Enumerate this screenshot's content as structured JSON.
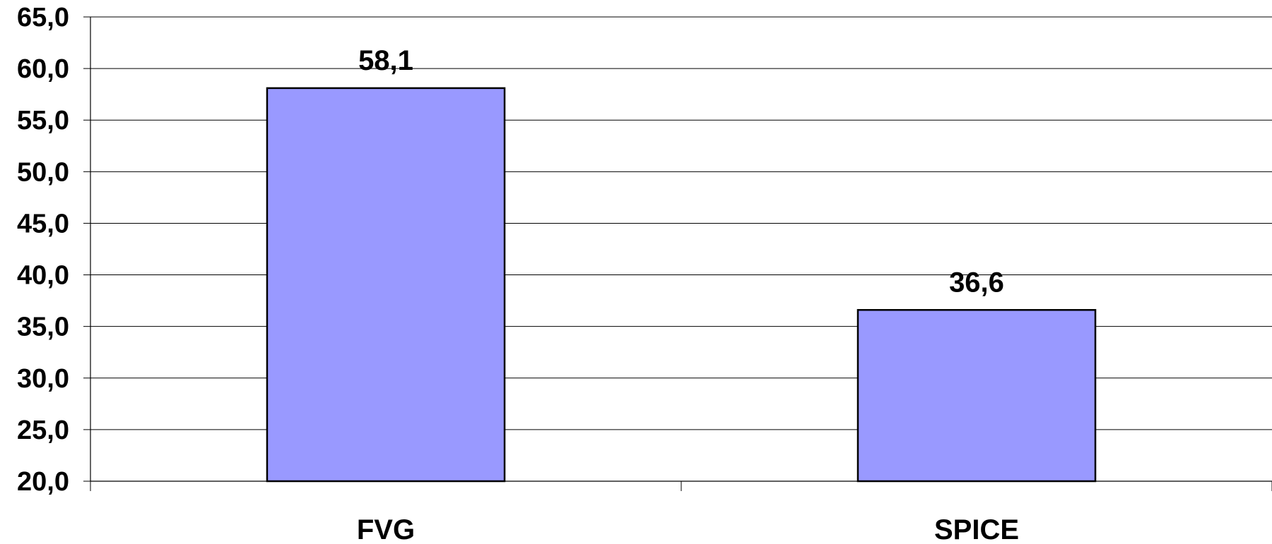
{
  "chart_data": {
    "type": "bar",
    "categories": [
      "FVG",
      "SPICE"
    ],
    "values": [
      58.1,
      36.6
    ],
    "data_labels": [
      "58,1",
      "36,6"
    ],
    "title": "",
    "xlabel": "",
    "ylabel": "",
    "ylim": [
      20,
      65
    ],
    "yticks": [
      20,
      25,
      30,
      35,
      40,
      45,
      50,
      55,
      60,
      65
    ],
    "ytick_labels": [
      "20,0",
      "25,0",
      "30,0",
      "35,0",
      "40,0",
      "45,0",
      "50,0",
      "55,0",
      "60,0",
      "65,0"
    ],
    "grid": true,
    "legend": "none",
    "bar_color": "#9999ff",
    "bar_edge_color": "#000000"
  }
}
